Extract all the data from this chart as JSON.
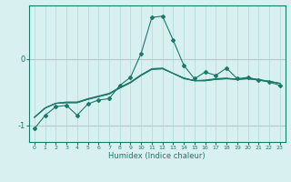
{
  "xlabel": "Humidex (Indice chaleur)",
  "x": [
    0,
    1,
    2,
    3,
    4,
    5,
    6,
    7,
    8,
    9,
    10,
    11,
    12,
    13,
    14,
    15,
    16,
    17,
    18,
    19,
    20,
    21,
    22,
    23
  ],
  "line1_y": [
    -1.05,
    -0.85,
    -0.72,
    -0.7,
    -0.85,
    -0.68,
    -0.62,
    -0.6,
    -0.4,
    -0.28,
    0.08,
    0.62,
    0.64,
    0.28,
    -0.1,
    -0.3,
    -0.2,
    -0.25,
    -0.14,
    -0.3,
    -0.28,
    -0.32,
    -0.35,
    -0.4
  ],
  "line2_y": [
    -0.88,
    -0.74,
    -0.67,
    -0.66,
    -0.66,
    -0.61,
    -0.57,
    -0.53,
    -0.44,
    -0.36,
    -0.25,
    -0.16,
    -0.15,
    -0.22,
    -0.29,
    -0.33,
    -0.33,
    -0.31,
    -0.3,
    -0.31,
    -0.3,
    -0.32,
    -0.34,
    -0.37
  ],
  "line3_y": [
    -0.88,
    -0.74,
    -0.67,
    -0.66,
    -0.66,
    -0.61,
    -0.57,
    -0.53,
    -0.44,
    -0.36,
    -0.25,
    -0.16,
    -0.15,
    -0.22,
    -0.29,
    -0.33,
    -0.33,
    -0.31,
    -0.3,
    -0.31,
    -0.3,
    -0.32,
    -0.34,
    -0.37
  ],
  "line4_y": [
    -0.88,
    -0.74,
    -0.67,
    -0.65,
    -0.65,
    -0.6,
    -0.56,
    -0.52,
    -0.43,
    -0.35,
    -0.24,
    -0.15,
    -0.14,
    -0.22,
    -0.3,
    -0.33,
    -0.32,
    -0.3,
    -0.29,
    -0.31,
    -0.29,
    -0.31,
    -0.34,
    -0.37
  ],
  "color": "#1a7a6a",
  "bg_color": "#d8f0f0",
  "grid_color": "#b0d8d8",
  "hline_color": "#d0a8a8",
  "ylim": [
    -1.25,
    0.8
  ],
  "yticks": [
    -1,
    0
  ],
  "xlim": [
    -0.5,
    23.5
  ]
}
